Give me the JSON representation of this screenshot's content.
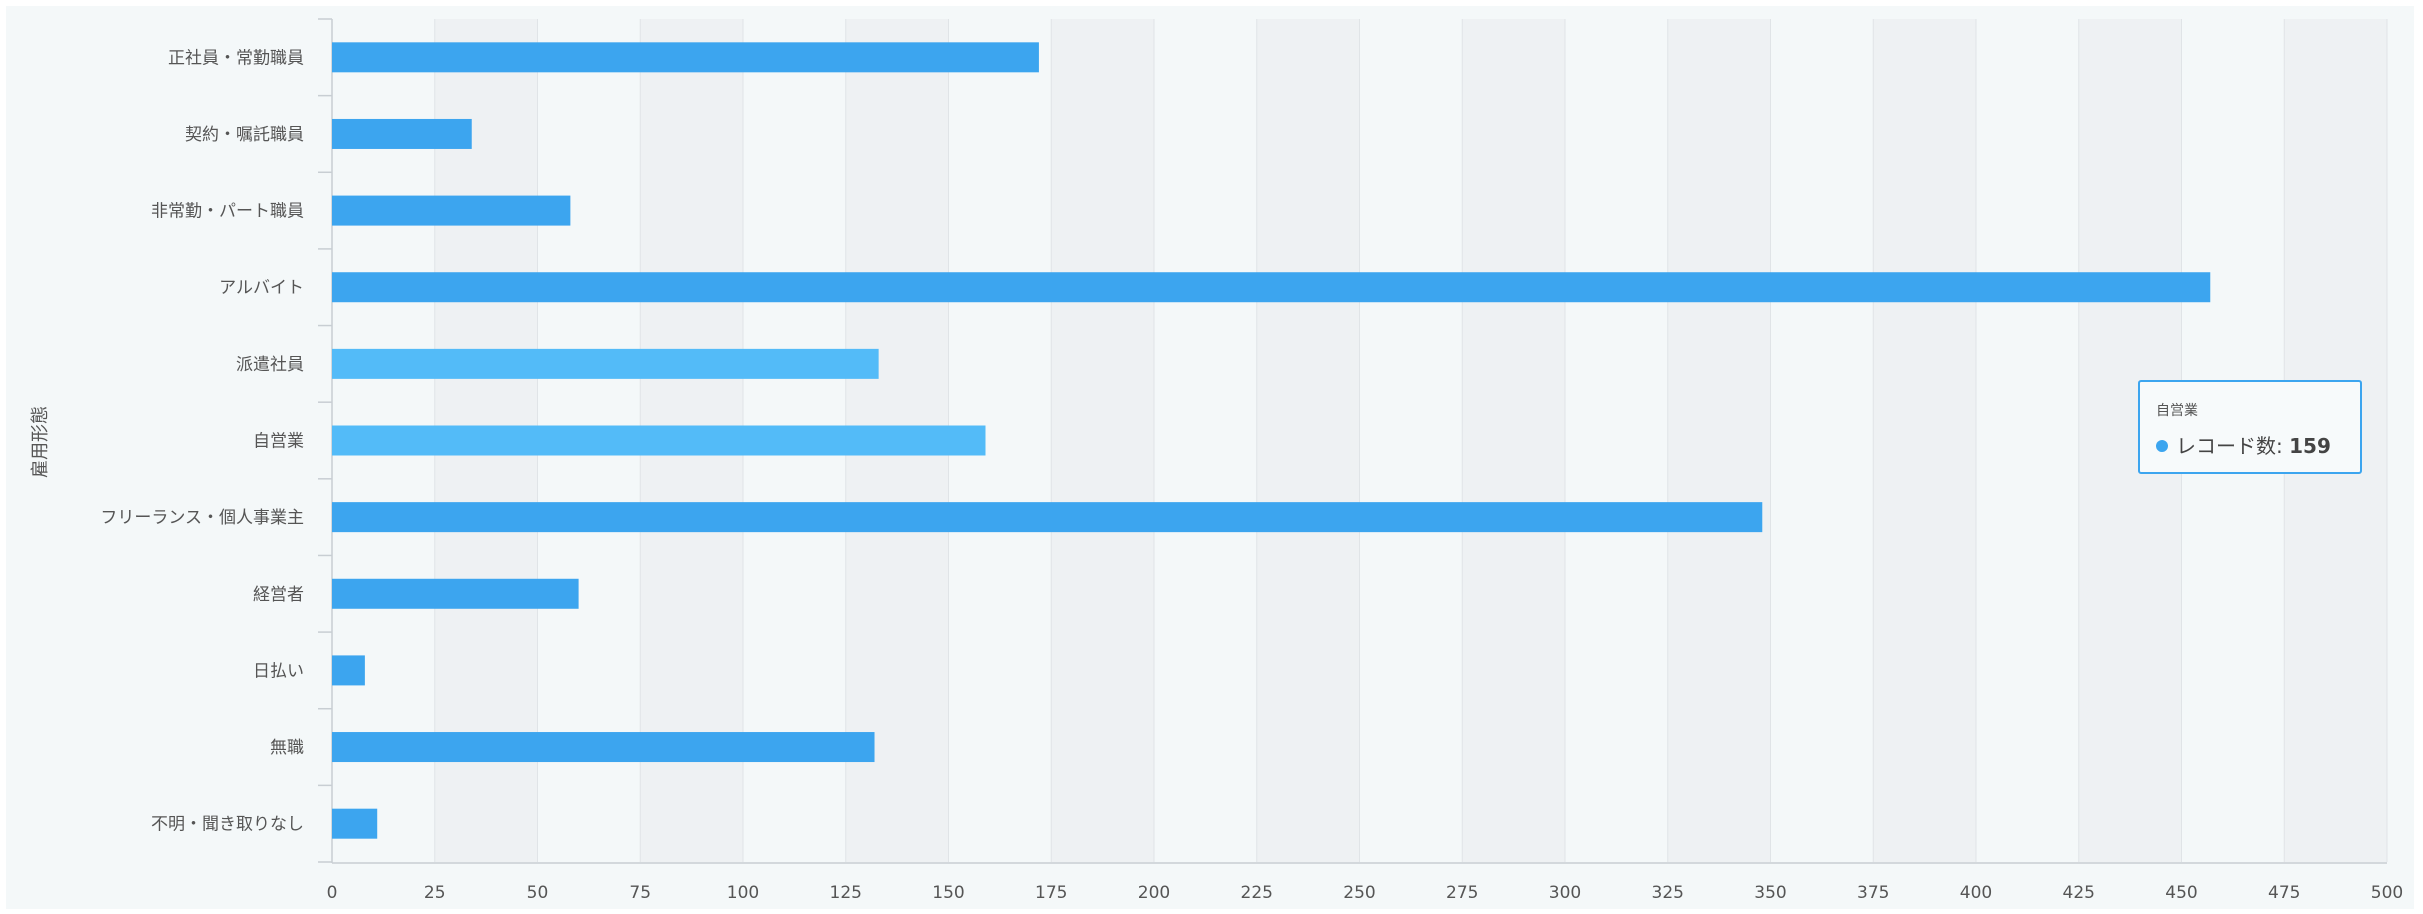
{
  "chart_data": {
    "type": "bar",
    "orientation": "horizontal",
    "ylabel": "雇用形態",
    "xlim": [
      0,
      500
    ],
    "x_ticks": [
      0,
      25,
      50,
      75,
      100,
      125,
      150,
      175,
      200,
      225,
      250,
      275,
      300,
      325,
      350,
      375,
      400,
      425,
      450,
      475,
      500
    ],
    "categories": [
      "正社員・常勤職員",
      "契約・嘱託職員",
      "非常勤・パート職員",
      "アルバイト",
      "派遣社員",
      "自営業",
      "フリーランス・個人事業主",
      "経営者",
      "日払い",
      "無職",
      "不明・聞き取りなし"
    ],
    "series": [
      {
        "name": "レコード数",
        "values": [
          172,
          34,
          58,
          457,
          133,
          159,
          348,
          60,
          8,
          132,
          11
        ]
      }
    ],
    "colors": {
      "bar": "#3ca5ef",
      "bar_highlight": "#53bbf8",
      "band": "#eef1f3",
      "grid": "#e0e4e7"
    },
    "highlighted_categories": [
      "派遣社員",
      "自営業"
    ],
    "grid": true,
    "alternating_bands": true
  },
  "tooltip": {
    "category": "自営業",
    "series_label": "レコード数: ",
    "value": "159"
  }
}
